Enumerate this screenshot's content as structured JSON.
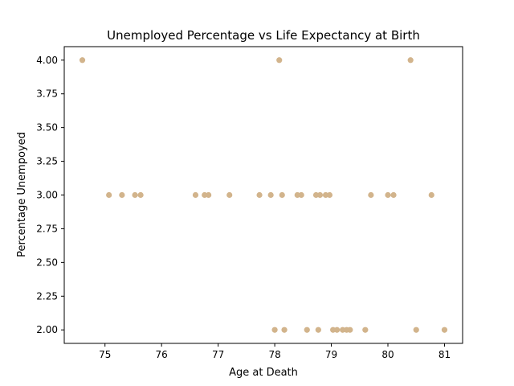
{
  "chart_data": {
    "type": "scatter",
    "title": "Unemployed Percentage vs Life Expectancy at Birth",
    "xlabel": "Age at Death",
    "ylabel": "Percentage Unempoyed",
    "xlim": [
      74.28,
      81.32
    ],
    "ylim": [
      1.9,
      4.1
    ],
    "xticks": [
      75,
      76,
      77,
      78,
      79,
      80,
      81
    ],
    "xtick_labels": [
      "75",
      "76",
      "77",
      "78",
      "79",
      "80",
      "81"
    ],
    "yticks": [
      2.0,
      2.25,
      2.5,
      2.75,
      3.0,
      3.25,
      3.5,
      3.75,
      4.0
    ],
    "ytick_labels": [
      "2.00",
      "2.25",
      "2.50",
      "2.75",
      "3.00",
      "3.25",
      "3.50",
      "3.75",
      "4.00"
    ],
    "grid": false,
    "point_color": "#d2b48c",
    "points": [
      {
        "x": 74.6,
        "y": 4.0
      },
      {
        "x": 78.08,
        "y": 4.0
      },
      {
        "x": 80.4,
        "y": 4.0
      },
      {
        "x": 75.07,
        "y": 3.0
      },
      {
        "x": 75.3,
        "y": 3.0
      },
      {
        "x": 75.53,
        "y": 3.0
      },
      {
        "x": 75.63,
        "y": 3.0
      },
      {
        "x": 76.6,
        "y": 3.0
      },
      {
        "x": 76.76,
        "y": 3.0
      },
      {
        "x": 76.83,
        "y": 3.0
      },
      {
        "x": 77.2,
        "y": 3.0
      },
      {
        "x": 77.73,
        "y": 3.0
      },
      {
        "x": 77.93,
        "y": 3.0
      },
      {
        "x": 78.13,
        "y": 3.0
      },
      {
        "x": 78.4,
        "y": 3.0
      },
      {
        "x": 78.47,
        "y": 3.0
      },
      {
        "x": 78.73,
        "y": 3.0
      },
      {
        "x": 78.8,
        "y": 3.0
      },
      {
        "x": 78.9,
        "y": 3.0
      },
      {
        "x": 78.97,
        "y": 3.0
      },
      {
        "x": 79.7,
        "y": 3.0
      },
      {
        "x": 80.0,
        "y": 3.0
      },
      {
        "x": 80.1,
        "y": 3.0
      },
      {
        "x": 80.77,
        "y": 3.0
      },
      {
        "x": 78.0,
        "y": 2.0
      },
      {
        "x": 78.17,
        "y": 2.0
      },
      {
        "x": 78.57,
        "y": 2.0
      },
      {
        "x": 78.77,
        "y": 2.0
      },
      {
        "x": 79.03,
        "y": 2.0
      },
      {
        "x": 79.1,
        "y": 2.0
      },
      {
        "x": 79.2,
        "y": 2.0
      },
      {
        "x": 79.27,
        "y": 2.0
      },
      {
        "x": 79.33,
        "y": 2.0
      },
      {
        "x": 79.6,
        "y": 2.0
      },
      {
        "x": 80.5,
        "y": 2.0
      },
      {
        "x": 81.0,
        "y": 2.0
      }
    ]
  }
}
